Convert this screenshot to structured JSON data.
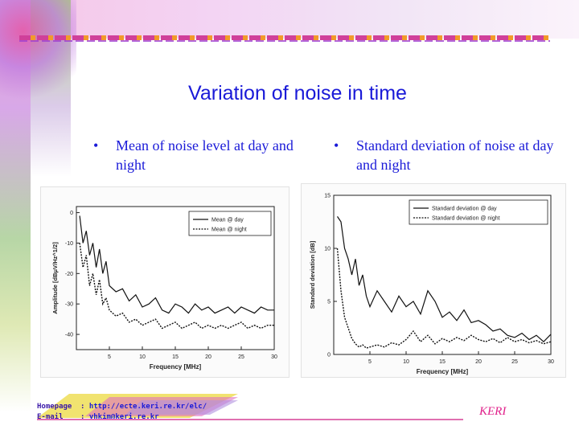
{
  "slide": {
    "title": "Variation of noise in time",
    "bullets": [
      {
        "text": "Mean of noise level at day and night"
      },
      {
        "text": "Standard deviation of noise at day and night"
      }
    ]
  },
  "chart_data": [
    {
      "type": "line",
      "xlabel": "Frequency [MHz]",
      "ylabel": "Amplitude [dBμV/Hz^1/2]",
      "xlim": [
        0,
        30
      ],
      "ylim": [
        -45,
        2
      ],
      "xticks": [
        "5",
        "10",
        "15",
        "20",
        "25",
        "30"
      ],
      "yticks": [
        "0",
        "-10",
        "-20",
        "-30",
        "-40"
      ],
      "legend_position": "top-right",
      "series": [
        {
          "name": "Mean @ day",
          "style": "solid",
          "x": [
            0.5,
            1,
            1.5,
            2,
            2.5,
            3,
            3.5,
            4,
            4.5,
            5,
            6,
            7,
            8,
            9,
            10,
            11,
            12,
            13,
            14,
            15,
            16,
            17,
            18,
            19,
            20,
            21,
            22,
            23,
            24,
            25,
            26,
            27,
            28,
            29,
            30
          ],
          "y": [
            -1,
            -10,
            -6,
            -14,
            -10,
            -18,
            -12,
            -20,
            -16,
            -24,
            -26,
            -25,
            -29,
            -27,
            -31,
            -30,
            -28,
            -32,
            -33,
            -30,
            -31,
            -33,
            -30,
            -32,
            -31,
            -33,
            -32,
            -31,
            -33,
            -31,
            -32,
            -33,
            -31,
            -32,
            -32
          ]
        },
        {
          "name": "Mean @ night",
          "style": "dotted",
          "x": [
            0.5,
            1,
            1.5,
            2,
            2.5,
            3,
            3.5,
            4,
            4.5,
            5,
            6,
            7,
            8,
            9,
            10,
            11,
            12,
            13,
            14,
            15,
            16,
            17,
            18,
            19,
            20,
            21,
            22,
            23,
            24,
            25,
            26,
            27,
            28,
            29,
            30
          ],
          "y": [
            -10,
            -18,
            -14,
            -24,
            -20,
            -27,
            -22,
            -30,
            -28,
            -32,
            -34,
            -33,
            -36,
            -35,
            -37,
            -36,
            -35,
            -38,
            -37,
            -36,
            -38,
            -37,
            -36,
            -38,
            -37,
            -38,
            -37,
            -38,
            -37,
            -36,
            -38,
            -37,
            -38,
            -37,
            -37
          ]
        }
      ]
    },
    {
      "type": "line",
      "xlabel": "Frequency [MHz]",
      "ylabel": "Standard deviation [dB]",
      "xlim": [
        0,
        30
      ],
      "ylim": [
        0,
        15
      ],
      "xticks": [
        "5",
        "10",
        "15",
        "20",
        "25",
        "30"
      ],
      "yticks": [
        "15",
        "10",
        "5",
        "0"
      ],
      "legend_position": "top-right",
      "series": [
        {
          "name": "Standard deviation @ day",
          "style": "solid",
          "x": [
            0.5,
            1,
            1.5,
            2,
            2.5,
            3,
            3.5,
            4,
            4.5,
            5,
            6,
            7,
            8,
            9,
            10,
            11,
            12,
            13,
            14,
            15,
            16,
            17,
            18,
            19,
            20,
            21,
            22,
            23,
            24,
            25,
            26,
            27,
            28,
            29,
            30
          ],
          "y": [
            13,
            12.5,
            10,
            9,
            7.5,
            9,
            6.5,
            7.5,
            5.5,
            4.5,
            6,
            5,
            4,
            5.5,
            4.5,
            5,
            3.8,
            6,
            5,
            3.5,
            4,
            3.2,
            4.2,
            3,
            3.2,
            2.8,
            2.2,
            2.4,
            1.8,
            1.6,
            2,
            1.4,
            1.8,
            1.2,
            1.9
          ]
        },
        {
          "name": "Standard deviation @ night",
          "style": "dotted",
          "x": [
            0.5,
            1,
            1.5,
            2,
            2.5,
            3,
            3.5,
            4,
            4.5,
            5,
            6,
            7,
            8,
            9,
            10,
            11,
            12,
            13,
            14,
            15,
            16,
            17,
            18,
            19,
            20,
            21,
            22,
            23,
            24,
            25,
            26,
            27,
            28,
            29,
            30
          ],
          "y": [
            10,
            6,
            3.5,
            2.5,
            1.5,
            1,
            0.7,
            0.9,
            0.6,
            0.7,
            0.9,
            0.7,
            1.1,
            0.9,
            1.4,
            2.2,
            1.2,
            1.8,
            1,
            1.5,
            1.2,
            1.6,
            1.3,
            1.8,
            1.4,
            1.2,
            1.5,
            1.1,
            1.6,
            1.2,
            1.4,
            1.1,
            1.3,
            1,
            1.2
          ]
        }
      ]
    }
  ],
  "footer": {
    "homepage_label": "Homepage",
    "homepage_url": "http://ecte.keri.re.kr/elc/",
    "email_label": "E-mail",
    "email": "yhkim@keri.re.kr",
    "org": "KERI"
  }
}
